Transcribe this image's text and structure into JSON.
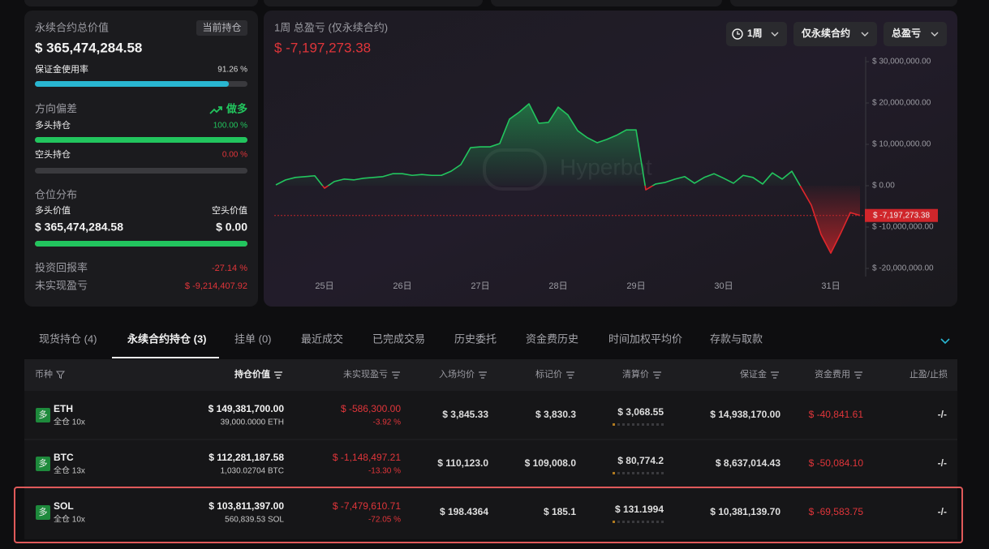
{
  "summary": {
    "total_value_label": "永续合约总价值",
    "badge": "当前持仓",
    "total_value": "$ 365,474,284.58",
    "margin_usage_label": "保证金使用率",
    "margin_usage": {
      "value": 91.26,
      "label": "91.26 %"
    },
    "bias_label": "方向偏差",
    "bias": "做多",
    "long_label": "多头持仓",
    "long_pct": {
      "value": 100,
      "label": "100.00 %"
    },
    "short_label": "空头持仓",
    "short_pct": {
      "value": 0,
      "label": "0.00 %"
    },
    "distribution_label": "仓位分布",
    "long_value_label": "多头价值",
    "short_value_label": "空头价值",
    "long_value": {
      "value": 365474284.58,
      "label": "$ 365,474,284.58"
    },
    "short_value": {
      "value": 0,
      "label": "$ 0.00"
    },
    "roi_label": "投资回报率",
    "roi": "-27.14 %",
    "upnl_label": "未实现盈亏",
    "upnl": "$ -9,214,407.92"
  },
  "pnl_chart": {
    "type": "area",
    "title": "1周 总盈亏 (仅永续合约)",
    "current": {
      "value": -7197273.38,
      "label": "$ -7,197,273.38"
    },
    "controls": [
      "1周",
      "仅永续合约",
      "总盈亏"
    ],
    "watermark": "Hyperbot",
    "colors": {
      "up": "#22c55e",
      "down": "#e0262b"
    },
    "categories": [
      null,
      null,
      null,
      null,
      null,
      "25日",
      null,
      null,
      null,
      null,
      null,
      null,
      null,
      "26日",
      null,
      null,
      null,
      null,
      null,
      null,
      null,
      "27日",
      null,
      null,
      null,
      null,
      null,
      null,
      null,
      "28日",
      null,
      null,
      null,
      null,
      null,
      null,
      null,
      "29日",
      null,
      null,
      null,
      null,
      null,
      null,
      null,
      null,
      "30日",
      null,
      null,
      null,
      null,
      null,
      null,
      null,
      null,
      null,
      null,
      "31日",
      null,
      null,
      null
    ],
    "values": [
      200000,
      1400000,
      2000000,
      2200000,
      2400000,
      -600000,
      1000000,
      1600000,
      1400000,
      1800000,
      2000000,
      2200000,
      2900000,
      2900000,
      2500000,
      2700000,
      2500000,
      2500000,
      3500000,
      5100000,
      9200000,
      9400000,
      9400000,
      10200000,
      16100000,
      17800000,
      19800000,
      15100000,
      15300000,
      19000000,
      17100000,
      13300000,
      11600000,
      10400000,
      11200000,
      12200000,
      13500000,
      13500000,
      -1000000,
      400000,
      800000,
      1600000,
      2200000,
      600000,
      2000000,
      2900000,
      1800000,
      600000,
      2500000,
      2000000,
      400000,
      3100000,
      1600000,
      3500000,
      -600000,
      -4700000,
      -11800000,
      -16300000,
      -11600000,
      -6500000,
      -7197273.38
    ],
    "ylim": [
      -21765000,
      31176000
    ],
    "yticks": [
      {
        "value": 30000000,
        "label": "$ 30,000,000.00"
      },
      {
        "value": 20000000,
        "label": "$ 20,000,000.00"
      },
      {
        "value": 10000000,
        "label": "$ 10,000,000.00"
      },
      {
        "value": 0,
        "label": "$ 0.00"
      },
      {
        "value": -10000000,
        "label": "$ -10,000,000.00"
      },
      {
        "value": -20000000,
        "label": "$ -20,000,000.00"
      }
    ]
  },
  "tabs": {
    "items": [
      "现货持仓 (4)",
      "永续合约持仓 (3)",
      "挂单 (0)",
      "最近成交",
      "已完成交易",
      "历史委托",
      "资金费历史",
      "时间加权平均价",
      "存款与取款"
    ],
    "active": 1
  },
  "table": {
    "columns": [
      "币种",
      "持仓价值",
      "未实现盈亏",
      "入场均价",
      "标记价",
      "清算价",
      "保证金",
      "资金费用",
      "止盈/止损"
    ],
    "rows": [
      {
        "side": "多",
        "symbol": "ETH",
        "margin_mode": "全仓 10x",
        "position_value": "$ 149,381,700.00",
        "size": "39,000.0000 ETH",
        "upnl": "$ -586,300.00",
        "upnl_pct": "-3.92 %",
        "entry_price": "$ 3,845.33",
        "mark_price": "$ 3,830.3",
        "liq_price": "$ 3,068.55",
        "margin": "$ 14,938,170.00",
        "funding": "$ -40,841.61",
        "tpsl": "-/-"
      },
      {
        "side": "多",
        "symbol": "BTC",
        "margin_mode": "全仓 13x",
        "position_value": "$ 112,281,187.58",
        "size": "1,030.02704 BTC",
        "upnl": "$ -1,148,497.21",
        "upnl_pct": "-13.30 %",
        "entry_price": "$ 110,123.0",
        "mark_price": "$ 109,008.0",
        "liq_price": "$ 80,774.2",
        "margin": "$ 8,637,014.43",
        "funding": "$ -50,084.10",
        "tpsl": "-/-"
      },
      {
        "side": "多",
        "symbol": "SOL",
        "margin_mode": "全仓 10x",
        "position_value": "$ 103,811,397.00",
        "size": "560,839.53 SOL",
        "upnl": "$ -7,479,610.71",
        "upnl_pct": "-72.05 %",
        "entry_price": "$ 198.4364",
        "mark_price": "$ 185.1",
        "liq_price": "$ 131.1994",
        "margin": "$ 10,381,139.70",
        "funding": "$ -69,583.75",
        "tpsl": "-/-"
      }
    ]
  }
}
